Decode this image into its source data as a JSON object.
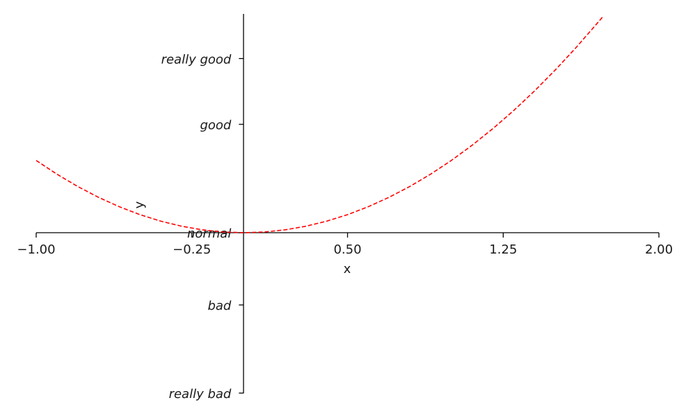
{
  "chart_data": {
    "type": "line",
    "title": "",
    "xlabel": "x",
    "ylabel": "y",
    "xlim": [
      -1.0,
      2.0
    ],
    "ylim": [
      -2.5,
      3.3
    ],
    "grid": false,
    "xticks": [
      {
        "value": -1.0,
        "label": "−1.00"
      },
      {
        "value": -0.25,
        "label": "−0.25"
      },
      {
        "value": 0.5,
        "label": "0.50"
      },
      {
        "value": 1.25,
        "label": "1.25"
      },
      {
        "value": 2.0,
        "label": "2.00"
      }
    ],
    "yticks": [
      {
        "value": -2.22,
        "label": "really  bad"
      },
      {
        "value": -1.0,
        "label": "bad"
      },
      {
        "value": 0.0,
        "label": "normal"
      },
      {
        "value": 1.5,
        "label": "good"
      },
      {
        "value": 2.41,
        "label": "really  good"
      }
    ],
    "series": [
      {
        "color": "#ff0000",
        "linestyle": "dashed",
        "x": [
          -1.0,
          -0.9,
          -0.8,
          -0.7,
          -0.6,
          -0.5,
          -0.4,
          -0.3,
          -0.2,
          -0.1,
          0.0,
          0.1,
          0.2,
          0.3,
          0.4,
          0.5,
          0.6,
          0.7,
          0.8,
          0.9,
          1.0,
          1.1,
          1.2,
          1.3,
          1.4,
          1.5,
          1.6,
          1.7,
          1.73
        ],
        "y": [
          1.0,
          0.81,
          0.64,
          0.49,
          0.36,
          0.25,
          0.16,
          0.09,
          0.04,
          0.01,
          0.0,
          0.01,
          0.04,
          0.09,
          0.16,
          0.25,
          0.36,
          0.49,
          0.64,
          0.81,
          1.0,
          1.21,
          1.44,
          1.69,
          1.96,
          2.25,
          2.56,
          2.89,
          2.99
        ]
      }
    ]
  }
}
